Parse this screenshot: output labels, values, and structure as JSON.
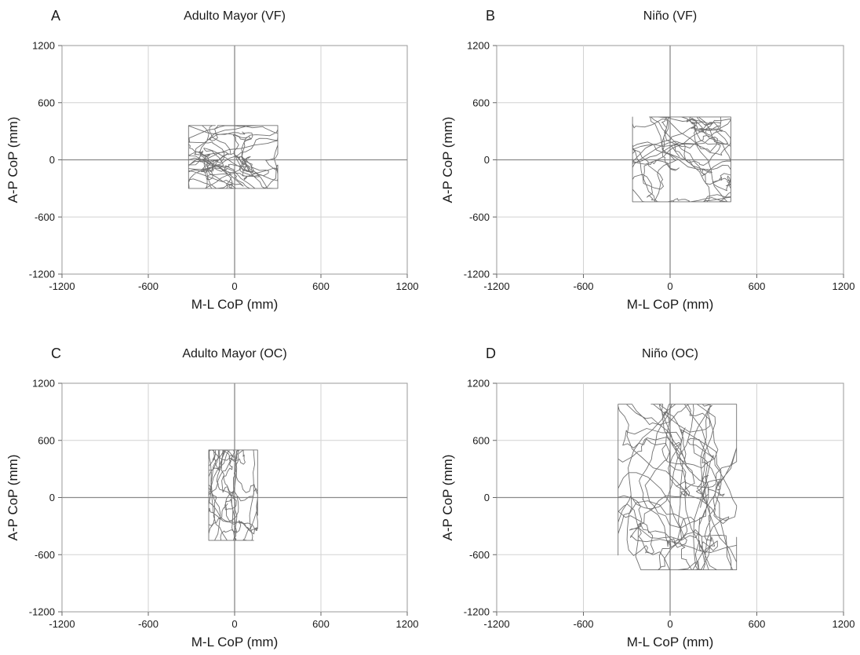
{
  "figure": {
    "title": ""
  },
  "chart_data": [
    {
      "type": "line",
      "panel_label": "A",
      "title": "Adulto Mayor (VF)",
      "xlabel": "M-L CoP (mm)",
      "ylabel": "A-P CoP (mm)",
      "xlim": [
        -1200,
        1200
      ],
      "ylim": [
        -1200,
        1200
      ],
      "xticks": [
        -1200,
        -600,
        0,
        600,
        1200
      ],
      "yticks": [
        1200,
        600,
        0,
        -600,
        -1200
      ],
      "grid": true,
      "line_color": "#707070",
      "trace_extent": {
        "x": [
          -320,
          300
        ],
        "y": [
          -300,
          360
        ]
      }
    },
    {
      "type": "line",
      "panel_label": "B",
      "title": "Niño (VF)",
      "xlabel": "M-L CoP (mm)",
      "ylabel": "A-P CoP (mm)",
      "xlim": [
        -1200,
        1200
      ],
      "ylim": [
        -1200,
        1200
      ],
      "xticks": [
        -1200,
        -600,
        0,
        600,
        1200
      ],
      "yticks": [
        1200,
        600,
        0,
        -600,
        -1200
      ],
      "grid": true,
      "line_color": "#707070",
      "trace_extent": {
        "x": [
          -260,
          420
        ],
        "y": [
          -440,
          450
        ]
      }
    },
    {
      "type": "line",
      "panel_label": "C",
      "title": "Adulto Mayor (OC)",
      "xlabel": "M-L CoP (mm)",
      "ylabel": "A-P CoP (mm)",
      "xlim": [
        -1200,
        1200
      ],
      "ylim": [
        -1200,
        1200
      ],
      "xticks": [
        -1200,
        -600,
        0,
        600,
        1200
      ],
      "yticks": [
        1200,
        600,
        0,
        -600,
        -1200
      ],
      "grid": true,
      "line_color": "#707070",
      "trace_extent": {
        "x": [
          -180,
          160
        ],
        "y": [
          -450,
          500
        ]
      }
    },
    {
      "type": "line",
      "panel_label": "D",
      "title": "Niño (OC)",
      "xlabel": "M-L CoP (mm)",
      "ylabel": "A-P CoP (mm)",
      "xlim": [
        -1200,
        1200
      ],
      "ylim": [
        -1200,
        1200
      ],
      "xticks": [
        -1200,
        -600,
        0,
        600,
        1200
      ],
      "yticks": [
        1200,
        600,
        0,
        -600,
        -1200
      ],
      "grid": true,
      "line_color": "#707070",
      "trace_extent": {
        "x": [
          -360,
          460
        ],
        "y": [
          -760,
          980
        ]
      }
    }
  ]
}
